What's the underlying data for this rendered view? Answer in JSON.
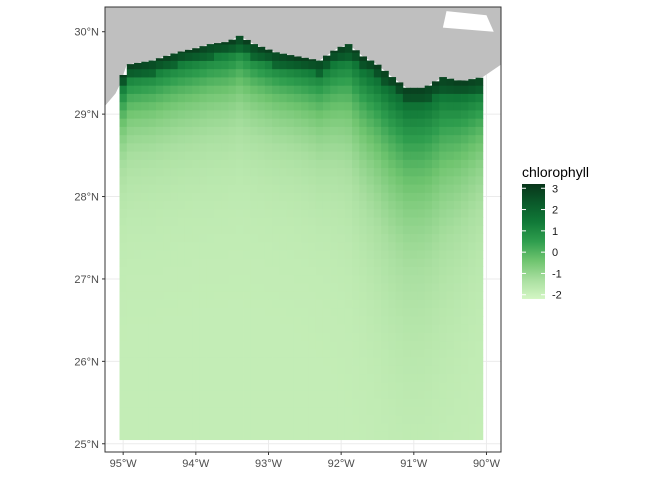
{
  "chart_data": {
    "type": "heatmap",
    "title": "",
    "xlabel": "",
    "ylabel": "",
    "xlim": [
      -95.25,
      -89.8
    ],
    "ylim": [
      24.9,
      30.3
    ],
    "x_ticks": [
      {
        "value": -95,
        "label": "95°W"
      },
      {
        "value": -94,
        "label": "94°W"
      },
      {
        "value": -93,
        "label": "93°W"
      },
      {
        "value": -92,
        "label": "92°W"
      },
      {
        "value": -91,
        "label": "91°W"
      },
      {
        "value": -90,
        "label": "90°W"
      }
    ],
    "y_ticks": [
      {
        "value": 25,
        "label": "25°N"
      },
      {
        "value": 26,
        "label": "26°N"
      },
      {
        "value": 27,
        "label": "27°N"
      },
      {
        "value": 28,
        "label": "28°N"
      },
      {
        "value": 29,
        "label": "29°N"
      },
      {
        "value": 30,
        "label": "30°N"
      }
    ],
    "legend": {
      "title": "chlorophyll",
      "placement": "right",
      "range": [
        -2.2,
        3.2
      ],
      "ticks": [
        {
          "value": 3,
          "label": "3"
        },
        {
          "value": 2,
          "label": "2"
        },
        {
          "value": 1,
          "label": "1"
        },
        {
          "value": 0,
          "label": "0"
        },
        {
          "value": -1,
          "label": "-1"
        },
        {
          "value": -2,
          "label": "-2"
        }
      ],
      "colors": [
        "#d4f6c4",
        "#a9dfa0",
        "#6fc46f",
        "#2f9e4e",
        "#117a38",
        "#0a5a2a",
        "#08351a"
      ]
    },
    "grid": true,
    "land_color": "#bfbfbf",
    "panel_border": "#333333",
    "data_extent": {
      "lon": [
        -95.05,
        -90.05
      ],
      "lat": [
        25.05,
        29.95
      ]
    },
    "coast_north_lat": [
      [
        -95.05,
        29.35
      ],
      [
        -94.95,
        29.6
      ],
      [
        -94.6,
        29.65
      ],
      [
        -94.25,
        29.75
      ],
      [
        -94.0,
        29.8
      ],
      [
        -93.8,
        29.85
      ],
      [
        -93.55,
        29.88
      ],
      [
        -93.4,
        29.95
      ],
      [
        -93.2,
        29.85
      ],
      [
        -92.9,
        29.75
      ],
      [
        -92.6,
        29.7
      ],
      [
        -92.3,
        29.65
      ],
      [
        -92.05,
        29.8
      ],
      [
        -91.9,
        29.85
      ],
      [
        -91.7,
        29.7
      ],
      [
        -91.5,
        29.6
      ],
      [
        -91.3,
        29.45
      ],
      [
        -91.1,
        29.32
      ],
      [
        -90.85,
        29.32
      ],
      [
        -90.6,
        29.45
      ],
      [
        -90.35,
        29.4
      ],
      [
        -90.05,
        29.45
      ]
    ],
    "fields": {
      "coastal_max": 3,
      "offshore_min": -2,
      "shelf_edge_dark_region": {
        "lon": [
          -91.8,
          -90.05
        ],
        "lat": [
          28.2,
          29.5
        ]
      }
    }
  }
}
